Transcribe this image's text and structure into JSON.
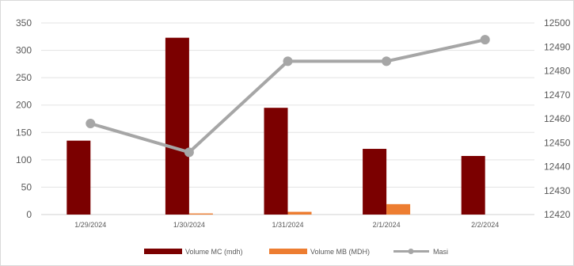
{
  "chart_data": {
    "type": "bar+line",
    "categories": [
      "1/29/2024",
      "1/30/2024",
      "1/31/2024",
      "2/1/2024",
      "2/2/2024"
    ],
    "series": [
      {
        "name": "Volume MC (mdh)",
        "type": "bar",
        "axis": "left",
        "color": "#7b0000",
        "values": [
          135,
          323,
          195,
          120,
          107
        ]
      },
      {
        "name": "Volume MB (MDH)",
        "type": "bar",
        "axis": "left",
        "color": "#ed7d31",
        "values": [
          0,
          2,
          5,
          19,
          0
        ]
      },
      {
        "name": "Masi",
        "type": "line",
        "axis": "right",
        "color": "#a6a6a6",
        "values": [
          12458,
          12446,
          12484,
          12484,
          12493
        ]
      }
    ],
    "y_left": {
      "min": 0,
      "max": 350,
      "ticks": [
        0,
        50,
        100,
        150,
        200,
        250,
        300,
        350
      ]
    },
    "y_right": {
      "min": 12420,
      "max": 12500,
      "ticks": [
        12420,
        12430,
        12440,
        12450,
        12460,
        12470,
        12480,
        12490,
        12500
      ]
    },
    "grid": true,
    "legend_position": "bottom"
  }
}
